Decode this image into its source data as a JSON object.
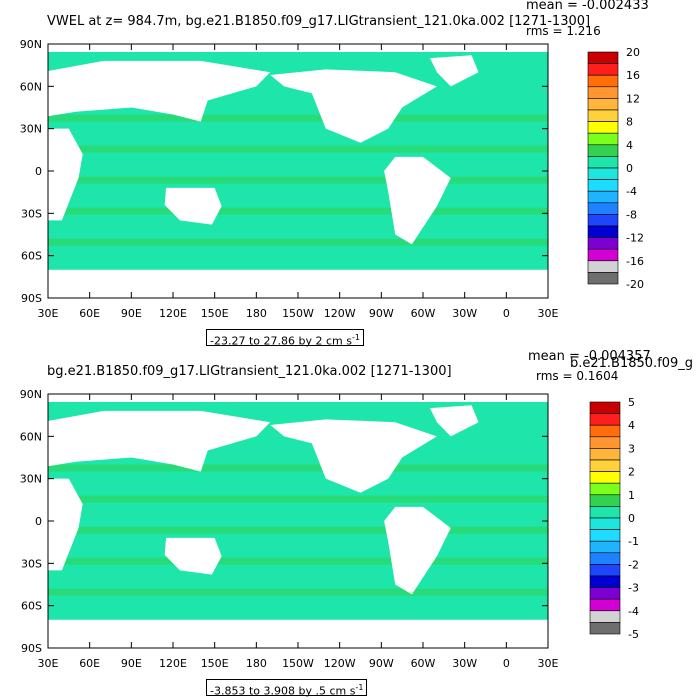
{
  "chart_data": [
    {
      "type": "heatmap",
      "title": "VWEL at z= 984.7m, bg.e21.B1850.f09_g17.LIGtransient_121.0ka.002 [1271-1300]",
      "mean_text": "mean = -0.002433",
      "rms_text": "rms = 1.216",
      "range_text": "-23.27 to 27.86 by 2 cm s",
      "range_unit_sup": "-1",
      "x_tick_labels": [
        "30E",
        "60E",
        "90E",
        "120E",
        "150E",
        "180",
        "150W",
        "120W",
        "90W",
        "60W",
        "30W",
        "0",
        "30E"
      ],
      "y_tick_labels": [
        "90N",
        "60N",
        "30N",
        "0",
        "30S",
        "60S",
        "90S"
      ],
      "ylim": [
        -90,
        90
      ],
      "colorbar_labels": [
        "20",
        "16",
        "12",
        "8",
        "4",
        "0",
        "-4",
        "-8",
        "-12",
        "-16",
        "-20"
      ],
      "colorbar_colors": [
        "#c80000",
        "#ff1e1e",
        "#ff6e0a",
        "#ff9632",
        "#ffb43c",
        "#ffd23c",
        "#ffff00",
        "#7dff1e",
        "#32d250",
        "#1ee6aa",
        "#1ee6dc",
        "#1edcff",
        "#1eb4ff",
        "#1e82ff",
        "#1e46ff",
        "#0000d2",
        "#7d00d2",
        "#d200d2",
        "#d2d2d2",
        "#6e6e6e"
      ],
      "fill_colors": {
        "ocean_main": "#1ee6aa",
        "ocean_alt": "#32d250",
        "land": "#ffffff"
      }
    },
    {
      "type": "heatmap",
      "title": "bg.e21.B1850.f09_g17.LIGtransient_121.0ka.002 [1271-1300]",
      "mean_text": "mean = -0.004357",
      "rms_text": "rms = 0.1604",
      "overlap_text": "b.e21.B1850.f09_g",
      "range_text": "-3.853 to 3.908 by .5 cm s",
      "range_unit_sup": "-1",
      "x_tick_labels": [
        "30E",
        "60E",
        "90E",
        "120E",
        "150E",
        "180",
        "150W",
        "120W",
        "90W",
        "60W",
        "30W",
        "0",
        "30E"
      ],
      "y_tick_labels": [
        "90N",
        "60N",
        "30N",
        "0",
        "30S",
        "60S",
        "90S"
      ],
      "ylim": [
        -90,
        90
      ],
      "colorbar_labels": [
        "5",
        "4",
        "3",
        "2",
        "1",
        "0",
        "-1",
        "-2",
        "-3",
        "-4",
        "-5"
      ],
      "colorbar_colors": [
        "#c80000",
        "#ff1e1e",
        "#ff6e0a",
        "#ff9632",
        "#ffb43c",
        "#ffd23c",
        "#ffff00",
        "#7dff1e",
        "#32d250",
        "#1ee6aa",
        "#1ee6dc",
        "#1edcff",
        "#1eb4ff",
        "#1e82ff",
        "#1e46ff",
        "#0000d2",
        "#7d00d2",
        "#d200d2",
        "#d2d2d2",
        "#6e6e6e"
      ],
      "fill_colors": {
        "ocean_main": "#1ee6aa",
        "ocean_alt": "#32d250",
        "land": "#ffffff"
      }
    }
  ]
}
